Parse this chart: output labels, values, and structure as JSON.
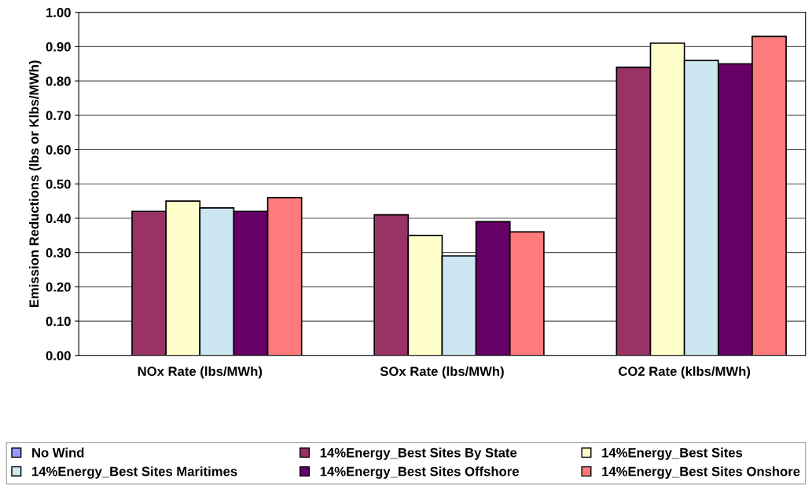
{
  "chart_data": {
    "type": "bar",
    "ylabel": "Emission Reductions (lbs or Klbs/MWh)",
    "categories": [
      "NOx Rate (lbs/MWh)",
      "SOx Rate (lbs/MWh)",
      "CO2 Rate (klbs/MWh)"
    ],
    "series": [
      {
        "name": "No Wind",
        "color": "#9999ff",
        "values": [
          0,
          0,
          0
        ]
      },
      {
        "name": "14%Energy_Best Sites By State",
        "color": "#993366",
        "values": [
          0.42,
          0.41,
          0.84
        ]
      },
      {
        "name": "14%Energy_Best Sites",
        "color": "#ffffcc",
        "values": [
          0.45,
          0.35,
          0.91
        ]
      },
      {
        "name": "14%Energy_Best Sites Maritimes",
        "color": "#cce6f2",
        "values": [
          0.43,
          0.29,
          0.86
        ]
      },
      {
        "name": "14%Energy_Best Sites Offshore",
        "color": "#660066",
        "values": [
          0.42,
          0.39,
          0.85
        ]
      },
      {
        "name": "14%Energy_Best Sites Onshore",
        "color": "#ff7a7a",
        "values": [
          0.46,
          0.36,
          0.93
        ]
      }
    ],
    "ylim": [
      0,
      1
    ],
    "yticks": [
      {
        "value": 0,
        "label": "0.00"
      },
      {
        "value": 0.1,
        "label": "0.10"
      },
      {
        "value": 0.2,
        "label": "0.20"
      },
      {
        "value": 0.3,
        "label": "0.30"
      },
      {
        "value": 0.4,
        "label": "0.40"
      },
      {
        "value": 0.5,
        "label": "0.50"
      },
      {
        "value": 0.6,
        "label": "0.60"
      },
      {
        "value": 0.7,
        "label": "0.70"
      },
      {
        "value": 0.8,
        "label": "0.80"
      },
      {
        "value": 0.9,
        "label": "0.90"
      },
      {
        "value": 1,
        "label": "1.00"
      }
    ],
    "grid": "y",
    "legend": "bottom"
  }
}
